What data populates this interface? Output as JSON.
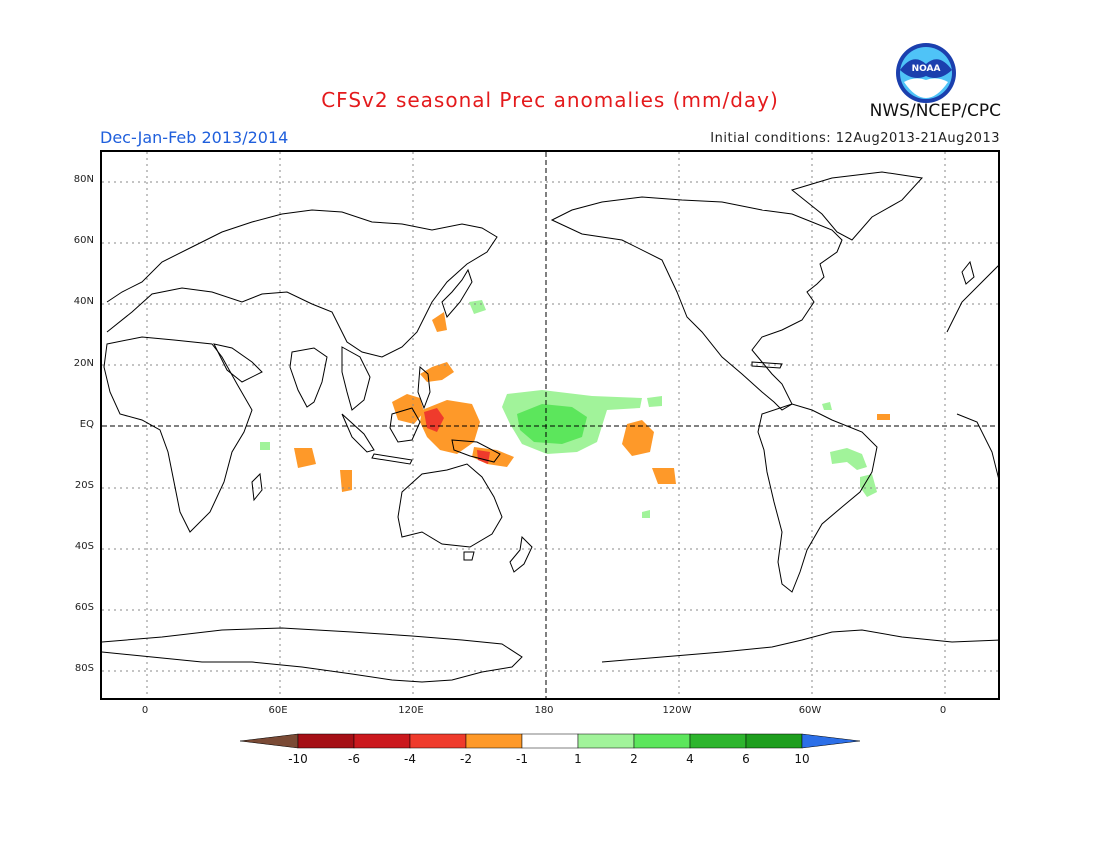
{
  "header": {
    "title": "CFSv2 seasonal Prec anomalies (mm/day)",
    "period": "Dec-Jan-Feb 2013/2014",
    "initial_conditions": "Initial conditions: 12Aug2013-21Aug2013",
    "agency": "NWS/NCEP/CPC",
    "logo_text": "NOAA"
  },
  "map": {
    "lat_labels": [
      "80N",
      "60N",
      "40N",
      "20N",
      "EQ",
      "20S",
      "40S",
      "60S",
      "80S"
    ],
    "lon_labels": [
      "0",
      "60E",
      "120E",
      "180",
      "120W",
      "60W",
      "0"
    ],
    "anomaly_regions": [
      {
        "name": "philippines-dry",
        "sign": "dry"
      },
      {
        "name": "maritime-continent-dry",
        "sign": "dry"
      },
      {
        "name": "borneo-strong-dry",
        "sign": "dry"
      },
      {
        "name": "south-pacific-dry",
        "sign": "dry"
      },
      {
        "name": "indian-ocean-dry",
        "sign": "dry"
      },
      {
        "name": "central-pacific-wet",
        "sign": "wet"
      },
      {
        "name": "south-america-wet",
        "sign": "wet"
      },
      {
        "name": "japan-wet",
        "sign": "wet"
      }
    ]
  },
  "colorbar": {
    "labels": [
      "-10",
      "-6",
      "-4",
      "-2",
      "-1",
      "1",
      "2",
      "4",
      "6",
      "10"
    ],
    "colors": [
      "#7a4a35",
      "#a50f15",
      "#cb181d",
      "#ef3b2c",
      "#fe9929",
      "#ffffff",
      "#a1f39a",
      "#5ce65c",
      "#2db52d",
      "#1e9e1e",
      "#2c6fe8"
    ]
  }
}
